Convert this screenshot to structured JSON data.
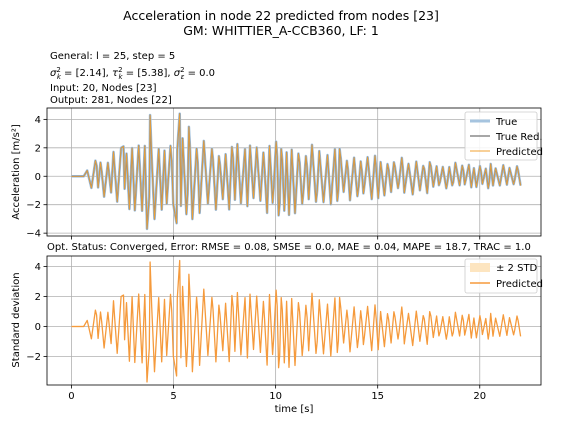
{
  "figure": {
    "title_line1": "Acceleration in node 22 predicted from nodes [23]",
    "title_line2": "GM: WHITTIER_A-CCB360, LF: 1",
    "info_line1": "General: l = 25, step = 5",
    "info_line2": "σ²_k = [2.14], τ²_k = [5.38], σ²_ε = 0.0",
    "info_line3": "Input: 20, Nodes [23]",
    "info_line4": "Output: 281, Nodes [22]",
    "status_line": "Opt. Status: Converged, Error: RMSE = 0.08, SMSE = 0.0, MAE = 0.04, MAPE = 18.7, TRAC = 1.0"
  },
  "chart_data": [
    {
      "type": "line",
      "panel": "top",
      "title": "",
      "xlabel": "",
      "ylabel": "Acceleration [m/s²]",
      "xlim": [
        -1.2,
        23.0
      ],
      "ylim": [
        -4.2,
        4.8
      ],
      "x_ticks": [
        "0",
        "5",
        "10",
        "15",
        "20"
      ],
      "x_tick_values": [
        0,
        5,
        10,
        15,
        20
      ],
      "y_ticks": [
        "−4",
        "−2",
        "0",
        "2",
        "4"
      ],
      "y_tick_values": [
        -4,
        -2,
        0,
        2,
        4
      ],
      "grid": true,
      "legend_position": "top-right",
      "signal": {
        "t_start": 0.0,
        "t_end": 22.0,
        "onset": 0.6,
        "period": 0.32,
        "envelope": [
          [
            0,
            0
          ],
          [
            0.6,
            0.3
          ],
          [
            1.0,
            1.0
          ],
          [
            1.5,
            1.4
          ],
          [
            2.2,
            2.0
          ],
          [
            2.8,
            2.4
          ],
          [
            3.4,
            3.2
          ],
          [
            3.9,
            4.3
          ],
          [
            4.3,
            2.8
          ],
          [
            5.0,
            2.9
          ],
          [
            5.3,
            4.4
          ],
          [
            6.0,
            3.0
          ],
          [
            7.0,
            2.5
          ],
          [
            8.0,
            2.4
          ],
          [
            9.0,
            2.7
          ],
          [
            10.0,
            3.0
          ],
          [
            11.0,
            2.6
          ],
          [
            12.0,
            2.3
          ],
          [
            13.0,
            2.0
          ],
          [
            14.0,
            1.8
          ],
          [
            16.0,
            1.4
          ],
          [
            18.0,
            1.1
          ],
          [
            20.0,
            0.9
          ],
          [
            22.0,
            0.8
          ]
        ],
        "extremes": [
          [
            3.85,
            4.3
          ],
          [
            3.7,
            -3.7
          ],
          [
            5.3,
            4.4
          ],
          [
            5.15,
            -3.3
          ],
          [
            2.55,
            2.1
          ],
          [
            3.1,
            -2.4
          ]
        ]
      },
      "series": [
        {
          "name": "True",
          "color": "#a6c4df"
        },
        {
          "name": "True Red.",
          "color": "#8a8a8a"
        },
        {
          "name": "Predicted",
          "color": "#f0a030"
        }
      ]
    },
    {
      "type": "line",
      "panel": "bottom",
      "title": "",
      "xlabel": "time [s]",
      "ylabel": "Standard deviation",
      "xlim": [
        -1.2,
        23.0
      ],
      "ylim": [
        -3.9,
        4.7
      ],
      "x_ticks": [
        "0",
        "5",
        "10",
        "15",
        "20"
      ],
      "x_tick_values": [
        0,
        5,
        10,
        15,
        20
      ],
      "y_ticks": [
        "−2",
        "0",
        "2",
        "4"
      ],
      "y_tick_values": [
        -2,
        0,
        2,
        4
      ],
      "grid": true,
      "legend_position": "top-right",
      "series": [
        {
          "name": "± 2 STD",
          "color": "#fde5c0"
        },
        {
          "name": "Predicted",
          "color": "#f59a3c"
        }
      ]
    }
  ]
}
